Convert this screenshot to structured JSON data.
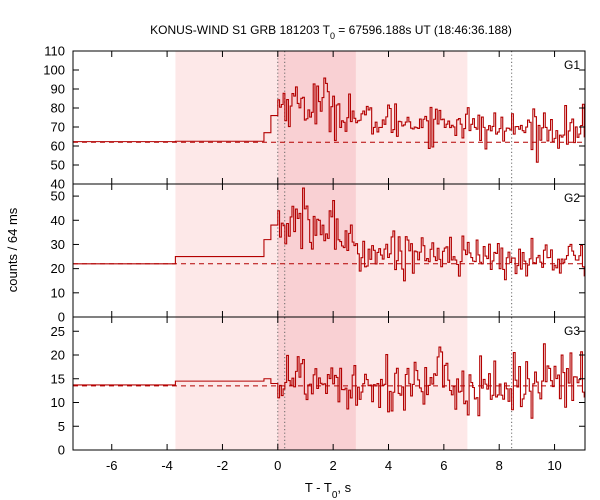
{
  "chart_data": {
    "type": "line",
    "title": {
      "prefix": "KONUS-WIND S1 GRB 181203 T",
      "sub": "0",
      "suffix": " = 67596.188s UT (18:46:36.188)"
    },
    "xlabel": {
      "prefix": "T - T",
      "sub": "0",
      "suffix": ", s"
    },
    "ylabel": "counts / 64 ms",
    "xlim": [
      -7.4,
      11.1
    ],
    "x_ticks": [
      -6,
      -4,
      -2,
      0,
      2,
      4,
      6,
      8,
      10
    ],
    "shaded_regions": [
      {
        "x0": -3.7,
        "x1": 6.85,
        "level": "light"
      },
      {
        "x0": 0.0,
        "x1": 2.82,
        "level": "dark"
      }
    ],
    "vertical_lines": [
      0.0,
      0.25,
      8.45
    ],
    "colors": {
      "curve": "#b30000",
      "background_line": "#b30000",
      "shade_light": "#fde8e8",
      "shade_dark": "#f9d0d3",
      "frame": "#000000",
      "vline": "#666666"
    },
    "panels": [
      {
        "name": "G1",
        "ylim": [
          40,
          110
        ],
        "yticks": [
          40,
          50,
          60,
          70,
          80,
          90,
          100,
          110
        ],
        "background": 62,
        "pre_steps": [
          {
            "x0": -7.4,
            "x1": -3.7,
            "y": 62.3
          },
          {
            "x0": -3.7,
            "x1": -0.5,
            "y": 62.5
          },
          {
            "x0": -0.5,
            "x1": -0.25,
            "y": 67
          },
          {
            "x0": -0.25,
            "x1": 0.0,
            "y": 76
          }
        ],
        "noise": {
          "x_start": 0.0,
          "x_end": 11.1,
          "dt": 0.064
        },
        "levels": [
          {
            "x0": 0.0,
            "x1": 0.8,
            "mean": 83,
            "sd": 6
          },
          {
            "x0": 0.8,
            "x1": 2.0,
            "mean": 82,
            "sd": 7
          },
          {
            "x0": 2.0,
            "x1": 2.8,
            "mean": 78,
            "sd": 6
          },
          {
            "x0": 2.8,
            "x1": 6.85,
            "mean": 73,
            "sd": 5
          },
          {
            "x0": 6.85,
            "x1": 11.1,
            "mean": 69,
            "sd": 5
          }
        ]
      },
      {
        "name": "G2",
        "ylim": [
          0,
          55
        ],
        "yticks": [
          0,
          10,
          20,
          30,
          40,
          50
        ],
        "background": 22,
        "pre_steps": [
          {
            "x0": -7.4,
            "x1": -3.7,
            "y": 22
          },
          {
            "x0": -3.7,
            "x1": -0.5,
            "y": 25
          },
          {
            "x0": -0.5,
            "x1": -0.25,
            "y": 32
          },
          {
            "x0": -0.25,
            "x1": 0.0,
            "y": 38
          }
        ],
        "noise": {
          "x_start": 0.0,
          "x_end": 11.1,
          "dt": 0.064
        },
        "levels": [
          {
            "x0": 0.0,
            "x1": 1.0,
            "mean": 38,
            "sd": 6
          },
          {
            "x0": 1.0,
            "x1": 2.0,
            "mean": 37,
            "sd": 7
          },
          {
            "x0": 2.0,
            "x1": 2.8,
            "mean": 33,
            "sd": 5
          },
          {
            "x0": 2.8,
            "x1": 6.85,
            "mean": 27,
            "sd": 4
          },
          {
            "x0": 6.85,
            "x1": 11.1,
            "mean": 24,
            "sd": 4
          }
        ]
      },
      {
        "name": "G3",
        "ylim": [
          0,
          28
        ],
        "yticks": [
          0,
          5,
          10,
          15,
          20,
          25
        ],
        "background": 13.5,
        "pre_steps": [
          {
            "x0": -7.4,
            "x1": -3.7,
            "y": 13.7
          },
          {
            "x0": -3.7,
            "x1": -0.5,
            "y": 14.5
          },
          {
            "x0": -0.5,
            "x1": -0.25,
            "y": 15
          },
          {
            "x0": -0.25,
            "x1": 0.0,
            "y": 14
          }
        ],
        "noise": {
          "x_start": 0.0,
          "x_end": 11.1,
          "dt": 0.064
        },
        "levels": [
          {
            "x0": 0.0,
            "x1": 2.8,
            "mean": 15,
            "sd": 3.5
          },
          {
            "x0": 2.8,
            "x1": 6.85,
            "mean": 14,
            "sd": 3
          },
          {
            "x0": 6.85,
            "x1": 11.1,
            "mean": 13.5,
            "sd": 4
          }
        ]
      }
    ]
  }
}
